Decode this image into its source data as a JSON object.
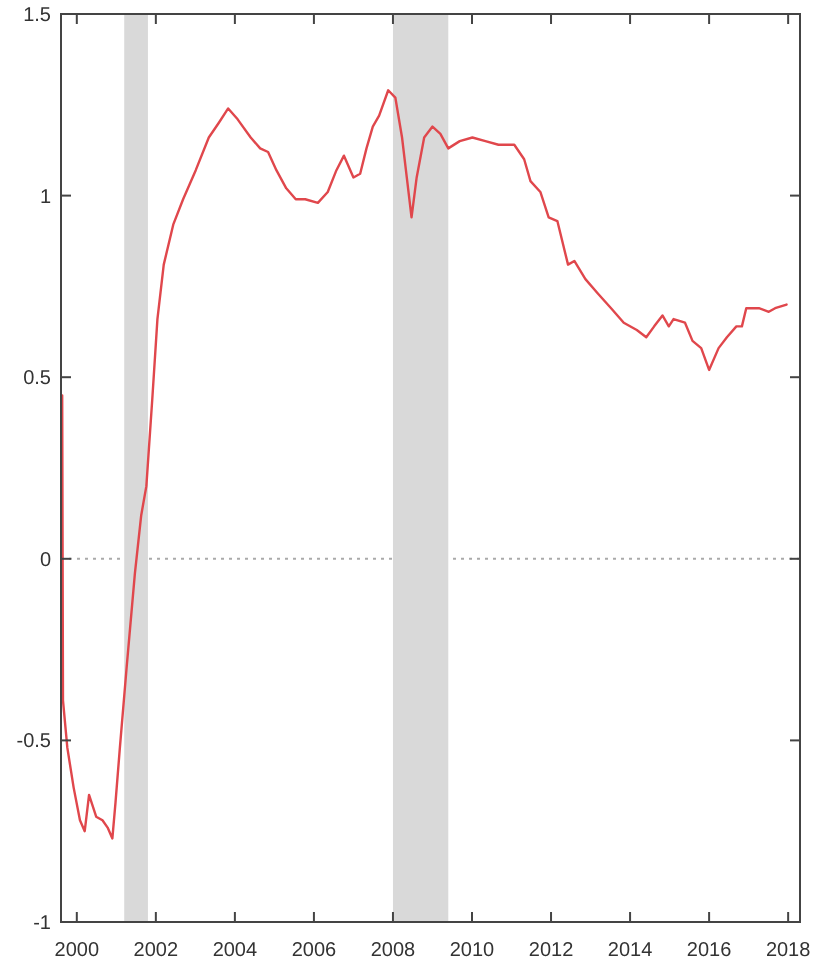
{
  "chart_data": {
    "type": "line",
    "x": [
      1999.63,
      1999.65,
      1999.76,
      1999.92,
      2000.08,
      2000.2,
      2000.31,
      2000.49,
      2000.65,
      2000.78,
      2000.9,
      2000.98,
      2001.09,
      2001.26,
      2001.47,
      2001.63,
      2001.76,
      2001.91,
      2002.04,
      2002.2,
      2002.44,
      2002.69,
      2003.01,
      2003.34,
      2003.59,
      2003.83,
      2004.07,
      2004.4,
      2004.64,
      2004.84,
      2005.05,
      2005.3,
      2005.54,
      2005.78,
      2006.1,
      2006.35,
      2006.57,
      2006.76,
      2007.0,
      2007.17,
      2007.33,
      2007.49,
      2007.65,
      2007.88,
      2008.06,
      2008.23,
      2008.35,
      2008.47,
      2008.6,
      2008.79,
      2009.0,
      2009.2,
      2009.4,
      2009.69,
      2010.01,
      2010.34,
      2010.67,
      2011.07,
      2011.32,
      2011.48,
      2011.73,
      2011.94,
      2012.16,
      2012.43,
      2012.59,
      2012.87,
      2013.19,
      2013.52,
      2013.84,
      2014.17,
      2014.41,
      2014.61,
      2014.82,
      2014.98,
      2015.1,
      2015.39,
      2015.58,
      2015.8,
      2016.0,
      2016.24,
      2016.45,
      2016.69,
      2016.83,
      2016.94,
      2017.26,
      2017.51,
      2017.67,
      2017.96
    ],
    "values": [
      0.45,
      -0.39,
      -0.52,
      -0.63,
      -0.72,
      -0.75,
      -0.65,
      -0.71,
      -0.72,
      -0.74,
      -0.77,
      -0.67,
      -0.52,
      -0.3,
      -0.04,
      0.12,
      0.2,
      0.44,
      0.66,
      0.81,
      0.92,
      0.99,
      1.07,
      1.16,
      1.2,
      1.24,
      1.21,
      1.16,
      1.13,
      1.12,
      1.07,
      1.02,
      0.99,
      0.99,
      0.98,
      1.01,
      1.07,
      1.11,
      1.05,
      1.06,
      1.13,
      1.19,
      1.22,
      1.29,
      1.27,
      1.16,
      1.05,
      0.94,
      1.05,
      1.16,
      1.19,
      1.17,
      1.13,
      1.15,
      1.16,
      1.15,
      1.14,
      1.14,
      1.1,
      1.04,
      1.01,
      0.94,
      0.93,
      0.81,
      0.82,
      0.77,
      0.73,
      0.69,
      0.65,
      0.63,
      0.61,
      0.64,
      0.67,
      0.64,
      0.66,
      0.65,
      0.6,
      0.58,
      0.52,
      0.58,
      0.61,
      0.64,
      0.64,
      0.69,
      0.69,
      0.68,
      0.69,
      0.7
    ],
    "color": "#e0474c",
    "xlim": [
      1999.6,
      2018.3
    ],
    "xticks": [
      2000,
      2002,
      2004,
      2006,
      2008,
      2010,
      2012,
      2014,
      2016,
      2018
    ],
    "ylim": [
      -1,
      1.5
    ],
    "yticks": [
      -1,
      -0.5,
      0,
      0.5,
      1,
      1.5
    ],
    "ref_lines": [
      {
        "axis": "y",
        "value": 0,
        "line_style": "dotted",
        "color": "#aaaaaa"
      }
    ],
    "bands": [
      {
        "axis": "x",
        "from": 2001.2,
        "to": 2001.8,
        "color": "#d9d9d9"
      },
      {
        "axis": "x",
        "from": 2008.0,
        "to": 2009.4,
        "color": "#d9d9d9"
      }
    ]
  }
}
